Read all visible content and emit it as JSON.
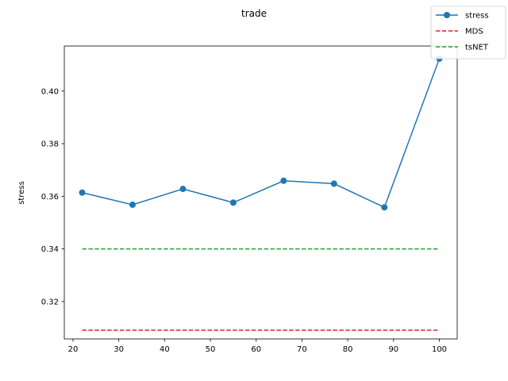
{
  "chart_data": {
    "type": "line",
    "title": "trade",
    "xlabel": "",
    "ylabel": "stress",
    "xlim": [
      18.1,
      103.9
    ],
    "ylim": [
      0.3058,
      0.4171
    ],
    "xticks": [
      20,
      30,
      40,
      50,
      60,
      70,
      80,
      90,
      100
    ],
    "yticks": [
      0.32,
      0.34,
      0.36,
      0.38,
      0.4
    ],
    "grid": false,
    "legend_position": "top-right",
    "series": [
      {
        "name": "stress",
        "style": "solid-markers",
        "color": "#1f77b4",
        "x": [
          22,
          33,
          44,
          55,
          66,
          77,
          88,
          100
        ],
        "y": [
          0.3614,
          0.3568,
          0.3628,
          0.3576,
          0.3659,
          0.3648,
          0.3558,
          0.4123
        ]
      },
      {
        "name": "MDS",
        "style": "dashed",
        "color": "#d62728",
        "x": [
          22,
          100
        ],
        "y": [
          0.3091,
          0.3091
        ]
      },
      {
        "name": "tsNET",
        "style": "dashed",
        "color": "#2ca02c",
        "x": [
          22,
          100
        ],
        "y": [
          0.34,
          0.34
        ]
      }
    ]
  }
}
